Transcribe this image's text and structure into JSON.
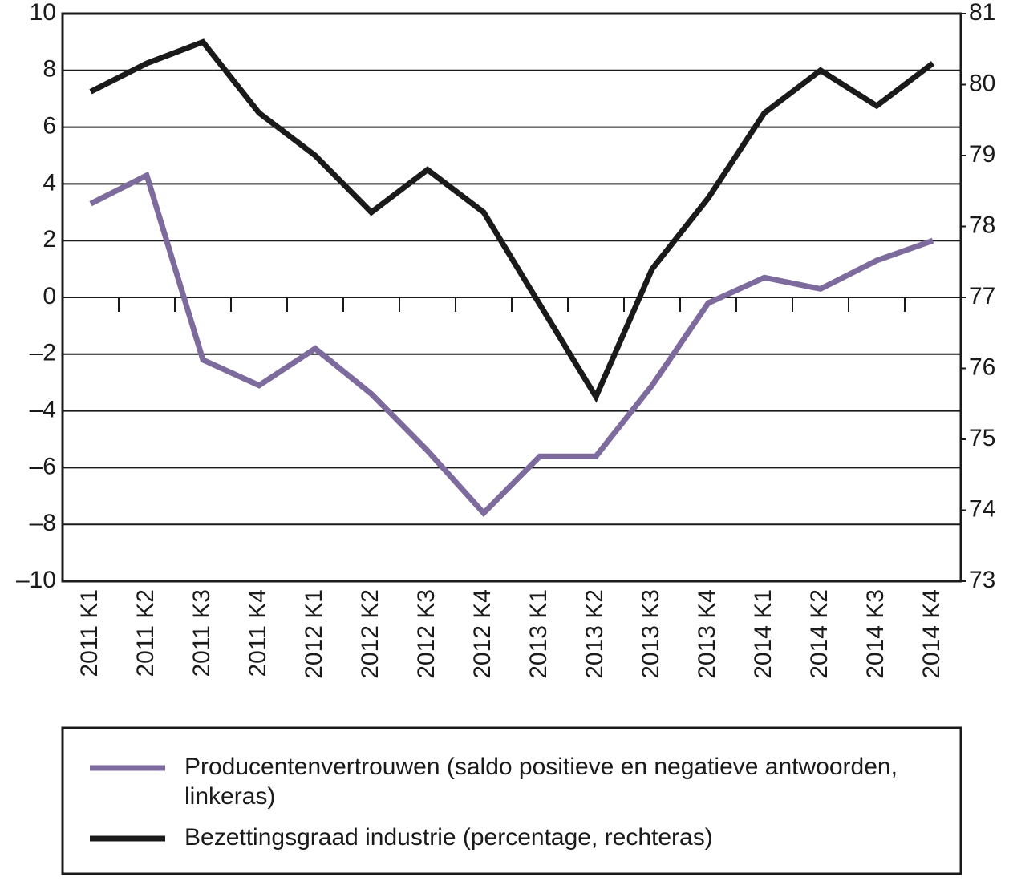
{
  "chart_data": {
    "type": "line",
    "categories": [
      "2011 K1",
      "2011 K2",
      "2011 K3",
      "2011 K4",
      "2012 K1",
      "2012 K2",
      "2012 K3",
      "2012 K4",
      "2013 K1",
      "2013 K2",
      "2013 K3",
      "2013 K4",
      "2014 K1",
      "2014 K2",
      "2014 K3",
      "2014 K4"
    ],
    "series": [
      {
        "name": "Producentenvertrouwen (saldo positieve en negatieve antwoorden, linkeras)",
        "color": "#7d6b9e",
        "values": [
          3.3,
          4.3,
          -2.2,
          -3.1,
          -1.8,
          -3.4,
          -5.4,
          -7.6,
          -5.6,
          -5.6,
          -3.1,
          -0.2,
          0.7,
          0.3,
          1.3,
          2.0
        ]
      },
      {
        "name": "Bezettingsgraad industrie (percentage, rechteras)",
        "color": "#1a1a1a",
        "axis": "y2",
        "values": [
          79.9,
          80.3,
          80.6,
          79.6,
          79.0,
          78.2,
          78.8,
          78.2,
          76.9,
          75.6,
          77.4,
          78.4,
          79.6,
          80.2,
          79.7,
          80.3
        ]
      }
    ],
    "ylim": [
      -10,
      10
    ],
    "yticks": [
      {
        "value": -10,
        "label": "–10"
      },
      {
        "value": -8,
        "label": "–8"
      },
      {
        "value": -6,
        "label": "–6"
      },
      {
        "value": -4,
        "label": "–4"
      },
      {
        "value": -2,
        "label": "–2"
      },
      0,
      2,
      4,
      6,
      8,
      10
    ],
    "y2lim": [
      73,
      81
    ],
    "y2ticks": [
      73,
      74,
      75,
      76,
      77,
      78,
      79,
      80,
      81
    ],
    "grid": true
  }
}
